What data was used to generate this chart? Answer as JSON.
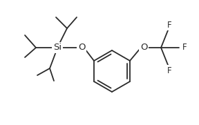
{
  "background": "#ffffff",
  "line_color": "#2a2a2a",
  "text_color": "#2a2a2a",
  "line_width": 1.3,
  "font_size": 8.5,
  "si_label": "Si",
  "o_label1": "O",
  "o_label2": "O",
  "f_labels": [
    "F",
    "F",
    "F"
  ],
  "fig_width": 2.88,
  "fig_height": 1.81,
  "dpi": 100
}
